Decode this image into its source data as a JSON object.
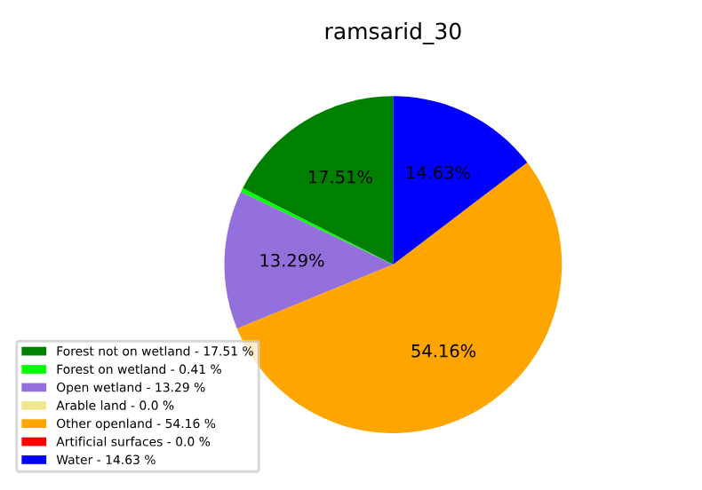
{
  "chart_data": {
    "type": "pie",
    "title": "ramsarid_30",
    "categories": [
      "Forest not on wetland - 17.51 %",
      "Forest on wetland - 0.41 %",
      "Open wetland - 13.29 %",
      "Arable land - 0.0 %",
      "Other openland - 54.16 %",
      "Artificial surfaces - 0.0 %",
      "Water - 14.63 %"
    ],
    "values": [
      17.51,
      0.41,
      13.29,
      0.0,
      54.16,
      0.0,
      14.63
    ],
    "colors": [
      "#008000",
      "#00ff00",
      "#9370db",
      "#f0e68c",
      "#ffa500",
      "#ff0000",
      "#0000ff"
    ],
    "value_labels": [
      "17.51%",
      null,
      "13.29%",
      null,
      "54.16%",
      null,
      "14.63%"
    ],
    "legend": "bottom left"
  }
}
